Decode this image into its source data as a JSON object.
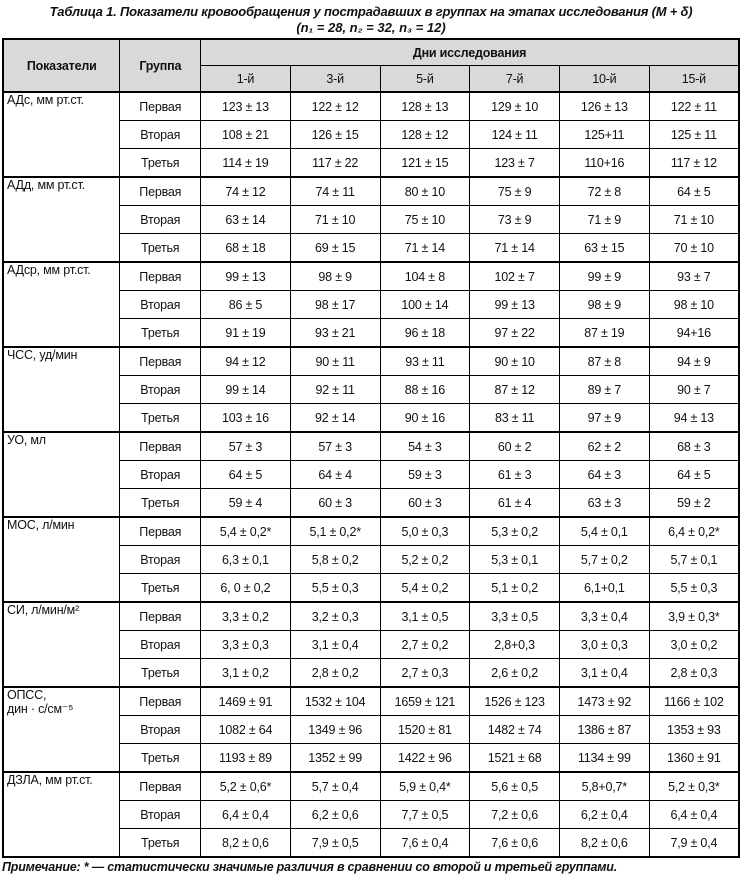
{
  "page": {
    "title": "Таблица 1. Показатели кровообращения у пострадавших в группах на этапах исследования (М + δ)",
    "subtitle": "(n₁ = 28, n₂ = 32, n₃ = 12)",
    "footnote": "Примечание: * — статистически значимые различия в сравнении со второй и третьей группами."
  },
  "colors": {
    "header_bg": "#d9d9d9",
    "border": "#000000",
    "text": "#111111"
  },
  "table": {
    "headers": {
      "indicators": "Показатели",
      "group": "Группа",
      "days_span": "Дни исследования"
    },
    "days": [
      "1-й",
      "3-й",
      "5-й",
      "7-й",
      "10-й",
      "15-й"
    ],
    "group_names": [
      "Первая",
      "Вторая",
      "Третья"
    ],
    "indicators": [
      {
        "label_lines": [
          "АДс, мм рт.ст."
        ],
        "groups": [
          {
            "name": "Первая",
            "values": [
              "123 ± 13",
              "122 ± 12",
              "128 ± 13",
              "129 ± 10",
              "126 ± 13",
              "122 ± 11"
            ]
          },
          {
            "name": "Вторая",
            "values": [
              "108 ± 21",
              "126 ± 15",
              "128 ± 12",
              "124 ± 11",
              "125+11",
              "125 ± 11"
            ]
          },
          {
            "name": "Третья",
            "values": [
              "114 ± 19",
              "117 ± 22",
              "121 ± 15",
              "123 ± 7",
              "110+16",
              "117 ± 12"
            ]
          }
        ]
      },
      {
        "label_lines": [
          "АДд, мм рт.ст."
        ],
        "groups": [
          {
            "name": "Первая",
            "values": [
              "74 ± 12",
              "74 ± 11",
              "80 ± 10",
              "75 ± 9",
              "72 ± 8",
              "64 ± 5"
            ]
          },
          {
            "name": "Вторая",
            "values": [
              "63 ± 14",
              "71 ± 10",
              "75 ± 10",
              "73 ± 9",
              "71 ± 9",
              "71 ± 10"
            ]
          },
          {
            "name": "Третья",
            "values": [
              "68 ± 18",
              "69 ± 15",
              "71 ± 14",
              "71 ± 14",
              "63 ± 15",
              "70 ± 10"
            ]
          }
        ]
      },
      {
        "label_lines": [
          "АДср, мм рт.ст."
        ],
        "groups": [
          {
            "name": "Первая",
            "values": [
              "99 ± 13",
              "98 ± 9",
              "104 ± 8",
              "102 ± 7",
              "99 ± 9",
              "93 ± 7"
            ]
          },
          {
            "name": "Вторая",
            "values": [
              "86 ± 5",
              "98 ± 17",
              "100 ± 14",
              "99 ± 13",
              "98 ± 9",
              "98 ± 10"
            ]
          },
          {
            "name": "Третья",
            "values": [
              "91 ± 19",
              "93 ± 21",
              "96 ± 18",
              "97 ± 22",
              "87 ± 19",
              "94+16"
            ]
          }
        ]
      },
      {
        "label_lines": [
          "ЧСС, уд/мин"
        ],
        "groups": [
          {
            "name": "Первая",
            "values": [
              "94 ± 12",
              "90 ± 11",
              "93 ± 11",
              "90 ± 10",
              "87 ± 8",
              "94 ± 9"
            ]
          },
          {
            "name": "Вторая",
            "values": [
              "99 ± 14",
              "92 ± 11",
              "88 ± 16",
              "87 ± 12",
              "89 ± 7",
              "90 ± 7"
            ]
          },
          {
            "name": "Третья",
            "values": [
              "103 ± 16",
              "92 ± 14",
              "90 ± 16",
              "83 ± 11",
              "97 ± 9",
              "94 ± 13"
            ]
          }
        ]
      },
      {
        "label_lines": [
          "УО, мл"
        ],
        "groups": [
          {
            "name": "Первая",
            "values": [
              "57 ± 3",
              "57 ± 3",
              "54 ± 3",
              "60 ± 2",
              "62 ± 2",
              "68 ± 3"
            ]
          },
          {
            "name": "Вторая",
            "values": [
              "64 ± 5",
              "64 ± 4",
              "59 ± 3",
              "61 ± 3",
              "64 ± 3",
              "64 ± 5"
            ]
          },
          {
            "name": "Третья",
            "values": [
              "59 ± 4",
              "60 ± 3",
              "60 ± 3",
              "61 ± 4",
              "63 ± 3",
              "59 ± 2"
            ]
          }
        ]
      },
      {
        "label_lines": [
          "МОС, л/мин"
        ],
        "groups": [
          {
            "name": "Первая",
            "values": [
              "5,4 ± 0,2*",
              "5,1 ± 0,2*",
              "5,0 ± 0,3",
              "5,3 ± 0,2",
              "5,4 ± 0,1",
              "6,4 ± 0,2*"
            ]
          },
          {
            "name": "Вторая",
            "values": [
              "6,3 ± 0,1",
              "5,8 ± 0,2",
              "5,2 ± 0,2",
              "5,3 ± 0,1",
              "5,7 ± 0,2",
              "5,7 ± 0,1"
            ]
          },
          {
            "name": "Третья",
            "values": [
              "6, 0 ± 0,2",
              "5,5 ± 0,3",
              "5,4 ± 0,2",
              "5,1 ± 0,2",
              "6,1+0,1",
              "5,5 ± 0,3"
            ]
          }
        ]
      },
      {
        "label_lines": [
          "СИ, л/мин/м²"
        ],
        "groups": [
          {
            "name": "Первая",
            "values": [
              "3,3 ± 0,2",
              "3,2 ± 0,3",
              "3,1 ± 0,5",
              "3,3 ± 0,5",
              "3,3 ± 0,4",
              "3,9 ± 0,3*"
            ]
          },
          {
            "name": "Вторая",
            "values": [
              "3,3 ± 0,3",
              "3,1 ± 0,4",
              "2,7 ± 0,2",
              "2,8+0,3",
              "3,0 ± 0,3",
              "3,0 ± 0,2"
            ]
          },
          {
            "name": "Третья",
            "values": [
              "3,1 ± 0,2",
              "2,8 ± 0,2",
              "2,7 ± 0,3",
              "2,6 ± 0,2",
              "3,1 ± 0,4",
              "2,8 ± 0,3"
            ]
          }
        ]
      },
      {
        "label_lines": [
          "ОПСС,",
          "дин · с/см⁻⁵"
        ],
        "groups": [
          {
            "name": "Первая",
            "values": [
              "1469 ± 91",
              "1532 ± 104",
              "1659 ± 121",
              "1526 ± 123",
              "1473 ± 92",
              "1166 ± 102"
            ]
          },
          {
            "name": "Вторая",
            "values": [
              "1082 ± 64",
              "1349 ± 96",
              "1520 ± 81",
              "1482 ± 74",
              "1386 ± 87",
              "1353 ± 93"
            ]
          },
          {
            "name": "Третья",
            "values": [
              "1193 ± 89",
              "1352 ± 99",
              "1422 ± 96",
              "1521 ± 68",
              "1134 ± 99",
              "1360 ± 91"
            ]
          }
        ]
      },
      {
        "label_lines": [
          "ДЗЛА, мм рт.ст."
        ],
        "groups": [
          {
            "name": "Первая",
            "values": [
              "5,2 ± 0,6*",
              "5,7 ± 0,4",
              "5,9 ± 0,4*",
              "5,6 ± 0,5",
              "5,8+0,7*",
              "5,2 ± 0,3*"
            ]
          },
          {
            "name": "Вторая",
            "values": [
              "6,4 ± 0,4",
              "6,2 ± 0,6",
              "7,7 ± 0,5",
              "7,2 ± 0,6",
              "6,2 ± 0,4",
              "6,4 ± 0,4"
            ]
          },
          {
            "name": "Третья",
            "values": [
              "8,2 ± 0,6",
              "7,9 ± 0,5",
              "7,6 ± 0,4",
              "7,6 ± 0,6",
              "8,2 ± 0,6",
              "7,9 ± 0,4"
            ]
          }
        ]
      }
    ]
  }
}
